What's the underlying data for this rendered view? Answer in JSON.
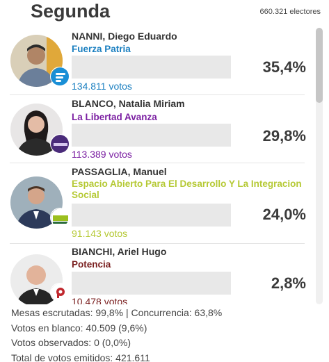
{
  "header": {
    "title": "Segunda",
    "electores": "660.321 electores"
  },
  "candidates": [
    {
      "name": "NANNI, Diego Eduardo",
      "party": "Fuerza Patria",
      "party_color": "#1a7fc0",
      "percent_label": "35,4%",
      "percent": 35.4,
      "votes_label": "134.811 votos",
      "badge_icon": "fuerza-patria-logo-icon"
    },
    {
      "name": "BLANCO, Natalia Miriam",
      "party": "La Libertad Avanza",
      "party_color": "#7b1fa2",
      "percent_label": "29,8%",
      "percent": 29.8,
      "votes_label": "113.389 votos",
      "badge_icon": "libertad-avanza-logo-icon"
    },
    {
      "name": "PASSAGLIA, Manuel",
      "party": "Espacio Abierto Para El Desarrollo Y La Integracion Social",
      "party_color": "#b5c934",
      "percent_label": "24,0%",
      "percent": 24.0,
      "votes_label": "91.143 votos",
      "badge_icon": "espacio-abierto-logo-icon"
    },
    {
      "name": "BIANCHI, Ariel Hugo",
      "party": "Potencia",
      "party_color": "#7a1f1f",
      "percent_label": "2,8%",
      "percent": 2.8,
      "votes_label": "10.478 votos",
      "badge_icon": "potencia-logo-icon"
    }
  ],
  "footer": {
    "mesas": "Mesas escrutadas: 99,8% | Concurrencia: 63,8%",
    "blanco": "Votos en blanco: 40.509 (9,6%)",
    "observados": "Votos observados: 0 (0,0%)",
    "total": "Total de votos emitidos: 421.611"
  }
}
